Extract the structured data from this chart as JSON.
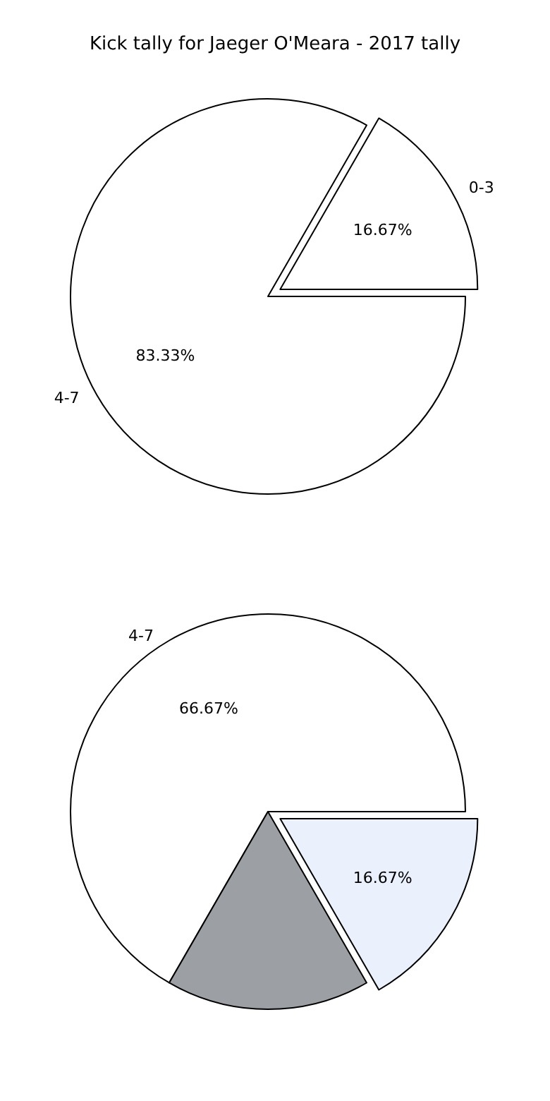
{
  "chart_data": [
    {
      "type": "pie",
      "title": "Kick tally for Jaeger O'Meara - 2017 tally",
      "categories": [
        "4-7",
        "0-3"
      ],
      "values": [
        83.33,
        16.67
      ],
      "colors": [
        "#ffffff",
        "#ffffff"
      ],
      "value_labels": [
        "83.33%",
        "16.67%"
      ]
    },
    {
      "type": "pie",
      "categories": [
        "4-7",
        null,
        null
      ],
      "values": [
        66.67,
        16.67,
        16.67
      ],
      "colors": [
        "#ffffff",
        "#9c9fa4",
        "#eaf1fd"
      ],
      "value_labels": [
        "66.67%",
        null,
        "16.67%"
      ]
    }
  ]
}
